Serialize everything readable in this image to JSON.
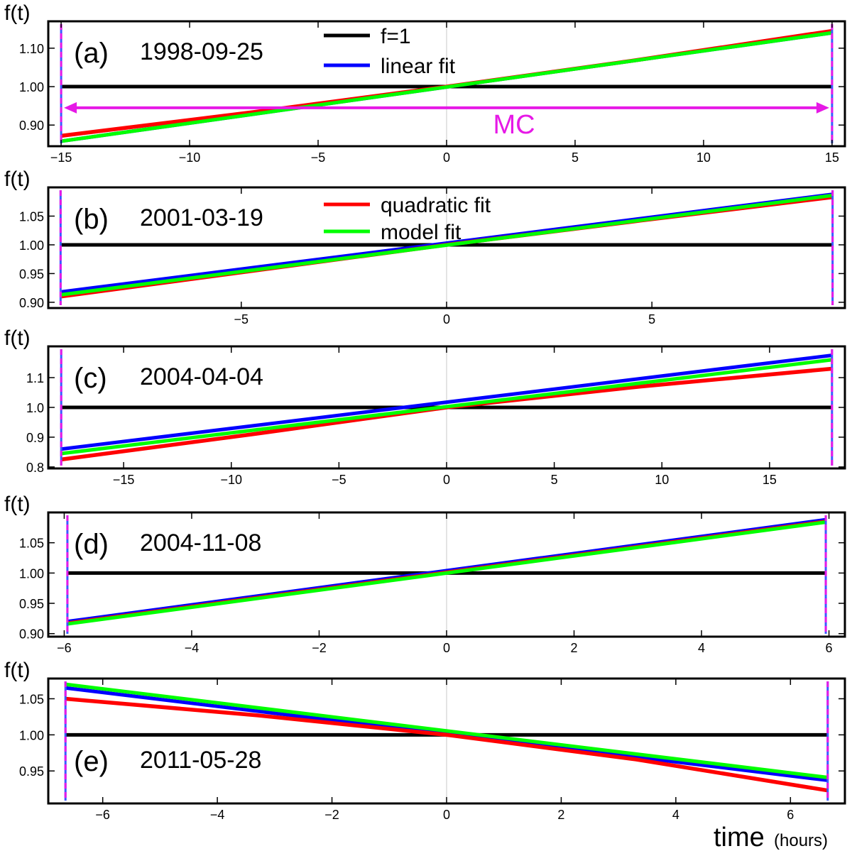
{
  "figure": {
    "time_label": "time",
    "time_unit": "(hours)",
    "legend": [
      {
        "label": "f=1",
        "color": "#000000",
        "panel": 0
      },
      {
        "label": "linear fit",
        "color": "#0000ff",
        "panel": 0
      },
      {
        "label": "quadratic fit",
        "color": "#ff0000",
        "panel": 1
      },
      {
        "label": "model fit",
        "color": "#00ff00",
        "panel": 1
      }
    ],
    "mc_label": "MC",
    "mc_color": "#e619e6"
  },
  "chart_data": [
    {
      "type": "line",
      "panel_label": "(a)",
      "date": "1998-09-25",
      "ylabel": "f(t)",
      "xlim": [
        -15.5,
        15.5
      ],
      "ylim": [
        0.845,
        1.17
      ],
      "xticks": [
        -15,
        -10,
        -5,
        0,
        5,
        10,
        15
      ],
      "xtick_labels": [
        "−15",
        "−10",
        "−5",
        "0",
        "5",
        "10",
        "15"
      ],
      "yticks": [
        0.9,
        1.0,
        1.1
      ],
      "ytick_labels": [
        "0.90",
        "1.00",
        "1.10"
      ],
      "mc_bounds": [
        -15,
        15
      ],
      "mc_arrow_y": 0.945,
      "series": [
        {
          "name": "f=1",
          "x": [
            -15,
            15
          ],
          "y": [
            1.0,
            1.0
          ]
        },
        {
          "name": "linear fit",
          "x": [
            -15,
            15
          ],
          "y": [
            0.858,
            1.14
          ]
        },
        {
          "name": "quadratic fit",
          "x": [
            -15,
            -7.5,
            0,
            7.5,
            15
          ],
          "y": [
            0.872,
            0.934,
            1.0,
            1.07,
            1.145
          ]
        },
        {
          "name": "model fit",
          "x": [
            -15,
            15
          ],
          "y": [
            0.858,
            1.14
          ]
        }
      ]
    },
    {
      "type": "line",
      "panel_label": "(b)",
      "date": "2001-03-19",
      "ylabel": "f(t)",
      "xlim": [
        -9.7,
        9.7
      ],
      "ylim": [
        0.89,
        1.1
      ],
      "xticks": [
        -5,
        0,
        5
      ],
      "xtick_labels": [
        "−5",
        "0",
        "5"
      ],
      "yticks": [
        0.9,
        0.95,
        1.0,
        1.05
      ],
      "ytick_labels": [
        "0.90",
        "0.95",
        "1.00",
        "1.05"
      ],
      "mc_bounds": [
        -9.4,
        9.4
      ],
      "series": [
        {
          "name": "f=1",
          "x": [
            -9.4,
            9.4
          ],
          "y": [
            1.0,
            1.0
          ]
        },
        {
          "name": "linear fit",
          "x": [
            -9.4,
            9.4
          ],
          "y": [
            0.918,
            1.088
          ]
        },
        {
          "name": "quadratic fit",
          "x": [
            -9.4,
            -4.7,
            0,
            4.7,
            9.4
          ],
          "y": [
            0.91,
            0.955,
            1.0,
            1.042,
            1.083
          ]
        },
        {
          "name": "model fit",
          "x": [
            -9.4,
            9.4
          ],
          "y": [
            0.913,
            1.086
          ]
        }
      ]
    },
    {
      "type": "line",
      "panel_label": "(c)",
      "date": "2004-04-04",
      "ylabel": "f(t)",
      "xlim": [
        -18.5,
        18.5
      ],
      "ylim": [
        0.795,
        1.205
      ],
      "xticks": [
        -15,
        -10,
        -5,
        0,
        5,
        10,
        15
      ],
      "xtick_labels": [
        "−15",
        "−10",
        "−5",
        "0",
        "5",
        "10",
        "15"
      ],
      "yticks": [
        0.8,
        0.9,
        1.0,
        1.1
      ],
      "ytick_labels": [
        "0.8",
        "0.9",
        "1.0",
        "1.1"
      ],
      "mc_bounds": [
        -17.9,
        17.9
      ],
      "series": [
        {
          "name": "f=1",
          "x": [
            -17.9,
            17.9
          ],
          "y": [
            1.0,
            1.0
          ]
        },
        {
          "name": "linear fit",
          "x": [
            -17.9,
            17.9
          ],
          "y": [
            0.86,
            1.175
          ]
        },
        {
          "name": "quadratic fit",
          "x": [
            -17.9,
            -9,
            0,
            9,
            17.9
          ],
          "y": [
            0.825,
            0.91,
            1.0,
            1.07,
            1.13
          ]
        },
        {
          "name": "model fit",
          "x": [
            -17.9,
            17.9
          ],
          "y": [
            0.845,
            1.16
          ]
        }
      ]
    },
    {
      "type": "line",
      "panel_label": "(d)",
      "date": "2004-11-08",
      "ylabel": "f(t)",
      "xlim": [
        -6.25,
        6.25
      ],
      "ylim": [
        0.895,
        1.1
      ],
      "xticks": [
        -6,
        -4,
        -2,
        0,
        2,
        4,
        6
      ],
      "xtick_labels": [
        "−6",
        "−4",
        "−2",
        "0",
        "2",
        "4",
        "6"
      ],
      "yticks": [
        0.9,
        0.95,
        1.0,
        1.05
      ],
      "ytick_labels": [
        "0.90",
        "0.95",
        "1.00",
        "1.05"
      ],
      "mc_bounds": [
        -5.95,
        5.95
      ],
      "series": [
        {
          "name": "f=1",
          "x": [
            -5.95,
            5.95
          ],
          "y": [
            1.0,
            1.0
          ]
        },
        {
          "name": "linear fit",
          "x": [
            -5.95,
            5.95
          ],
          "y": [
            0.92,
            1.088
          ]
        },
        {
          "name": "quadratic fit",
          "x": [
            -5.95,
            5.95
          ],
          "y": [
            0.917,
            1.085
          ]
        },
        {
          "name": "model fit",
          "x": [
            -5.95,
            5.95
          ],
          "y": [
            0.916,
            1.084
          ]
        }
      ]
    },
    {
      "type": "line",
      "panel_label": "(e)",
      "date": "2011-05-28",
      "ylabel": "f(t)",
      "xlim": [
        -6.95,
        6.95
      ],
      "ylim": [
        0.905,
        1.078
      ],
      "xticks": [
        -6,
        -4,
        -2,
        0,
        2,
        4,
        6
      ],
      "xtick_labels": [
        "−6",
        "−4",
        "−2",
        "0",
        "2",
        "4",
        "6"
      ],
      "yticks": [
        0.95,
        1.0,
        1.05
      ],
      "ytick_labels": [
        "0.95",
        "1.00",
        "1.05"
      ],
      "mc_bounds": [
        -6.65,
        6.65
      ],
      "series": [
        {
          "name": "f=1",
          "x": [
            -6.65,
            6.65
          ],
          "y": [
            1.0,
            1.0
          ]
        },
        {
          "name": "linear fit",
          "x": [
            -6.65,
            6.65
          ],
          "y": [
            1.065,
            0.937
          ]
        },
        {
          "name": "quadratic fit",
          "x": [
            -6.65,
            -3.3,
            0,
            3.3,
            6.65
          ],
          "y": [
            1.05,
            1.027,
            1.0,
            0.966,
            0.923
          ]
        },
        {
          "name": "model fit",
          "x": [
            -6.65,
            6.65
          ],
          "y": [
            1.07,
            0.941
          ]
        }
      ]
    }
  ]
}
